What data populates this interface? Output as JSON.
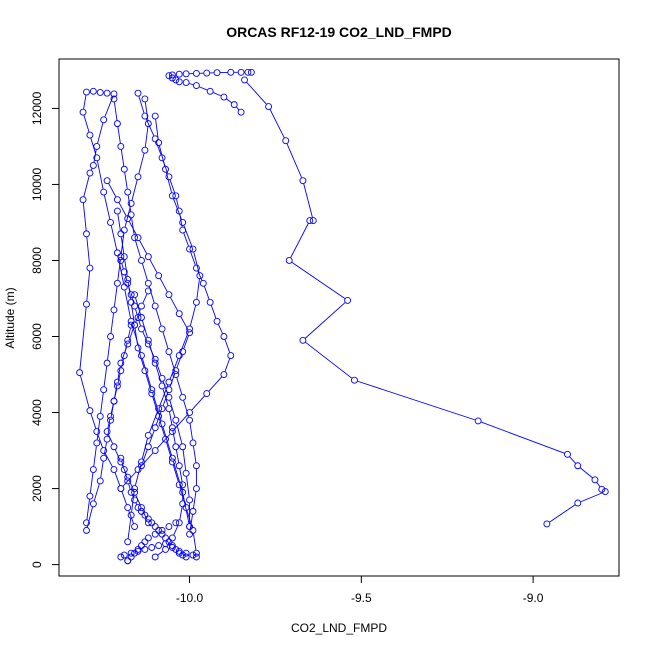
{
  "chart_data": {
    "type": "scatter",
    "title": "ORCAS RF12-19 CO2_LND_FMPD",
    "xlabel": "CO2_LND_FMPD",
    "ylabel": "Altitude (m)",
    "xlim": [
      -10.38,
      -8.75
    ],
    "ylim": [
      -300,
      13300
    ],
    "xticks": [
      -10.0,
      -9.5,
      -9.0
    ],
    "xtick_labels": [
      "-10.0",
      "-9.5",
      "-9.0"
    ],
    "yticks": [
      0,
      2000,
      4000,
      6000,
      8000,
      10000,
      12000
    ],
    "ytick_labels": [
      "0",
      "2000",
      "4000",
      "6000",
      "8000",
      "10000",
      "12000"
    ],
    "grid": false,
    "legend": "none",
    "marker": "open-circle",
    "color": "#0000ff",
    "series": [
      {
        "x": [
          -9.82,
          -9.83,
          -9.85,
          -9.88,
          -9.92,
          -9.95,
          -9.98,
          -10.01,
          -10.03,
          -10.05,
          -10.06,
          -10.05,
          -10.04,
          -10.03,
          -10.01,
          -9.98,
          -9.94,
          -9.9,
          -9.87,
          -9.85
        ],
        "y": [
          12950,
          12950,
          12950,
          12950,
          12940,
          12930,
          12920,
          12910,
          12900,
          12880,
          12860,
          12800,
          12750,
          12700,
          12680,
          12600,
          12450,
          12300,
          12100,
          11900
        ]
      },
      {
        "x": [
          -9.84,
          -9.77,
          -9.72,
          -9.67,
          -9.64,
          -9.65,
          -9.71,
          -9.54,
          -9.67,
          -9.52,
          -9.16,
          -8.9,
          -8.87,
          -8.82,
          -8.8,
          -8.79,
          -8.87,
          -8.96
        ],
        "y": [
          12750,
          12050,
          11150,
          10100,
          9050,
          9050,
          8000,
          6950,
          5900,
          4850,
          3780,
          2900,
          2600,
          2230,
          1980,
          1920,
          1620,
          1070
        ]
      },
      {
        "x": [
          -10.28,
          -10.26,
          -10.24,
          -10.22,
          -10.25,
          -10.27,
          -10.28,
          -10.29,
          -10.31,
          -10.3,
          -10.29,
          -10.3,
          -10.32,
          -10.29,
          -10.27,
          -10.25,
          -10.22,
          -10.2,
          -10.18,
          -10.16
        ],
        "y": [
          12450,
          12420,
          12400,
          12380,
          11700,
          11000,
          10500,
          10300,
          9600,
          8700,
          7800,
          6850,
          5050,
          4050,
          3500,
          3000,
          2500,
          2000,
          1500,
          1000
        ]
      },
      {
        "x": [
          -10.3,
          -10.31,
          -10.29,
          -10.27,
          -10.25,
          -10.23,
          -10.21,
          -10.19,
          -10.17,
          -10.14,
          -10.11,
          -10.08,
          -10.05,
          -10.02,
          -10.0
        ],
        "y": [
          12430,
          11900,
          11300,
          10700,
          9800,
          9000,
          8200,
          7300,
          6400,
          5500,
          4600,
          3700,
          2800,
          1900,
          1000
        ]
      },
      {
        "x": [
          -10.15,
          -10.13,
          -10.1,
          -10.08,
          -10.06,
          -10.04,
          -10.03,
          -10.02,
          -10.0,
          -9.98,
          -9.96,
          -9.94,
          -9.92,
          -9.9,
          -9.88,
          -9.9,
          -9.95,
          -10.0,
          -10.05,
          -10.1,
          -10.15,
          -10.2
        ],
        "y": [
          12400,
          11800,
          11200,
          10700,
          10200,
          9700,
          9300,
          8800,
          8300,
          7800,
          7400,
          6900,
          6400,
          6000,
          5500,
          5000,
          4500,
          4000,
          3500,
          3000,
          2500,
          2000
        ]
      },
      {
        "x": [
          -10.22,
          -10.21,
          -10.2,
          -10.19,
          -10.18,
          -10.17,
          -10.16,
          -10.14,
          -10.12,
          -10.1,
          -10.08,
          -10.06,
          -10.04,
          -10.02,
          -10.0,
          -9.99,
          -9.98,
          -9.98,
          -9.99,
          -10.0
        ],
        "y": [
          12250,
          11600,
          11000,
          10400,
          9800,
          9200,
          8600,
          8000,
          7400,
          6800,
          6200,
          5600,
          5000,
          4400,
          3800,
          3200,
          2600,
          2000,
          1400,
          800
        ]
      },
      {
        "x": [
          -10.13,
          -10.12,
          -10.13,
          -10.15,
          -10.17,
          -10.19,
          -10.2,
          -10.21,
          -10.22,
          -10.23,
          -10.24,
          -10.25,
          -10.26,
          -10.27,
          -10.28,
          -10.29,
          -10.3
        ],
        "y": [
          12250,
          11600,
          10900,
          10200,
          9500,
          8800,
          8100,
          7400,
          6700,
          6000,
          5300,
          4600,
          3900,
          3200,
          2500,
          1800,
          1100
        ]
      },
      {
        "x": [
          -10.1,
          -10.09,
          -10.07,
          -10.05,
          -10.02,
          -9.99,
          -9.97,
          -9.98,
          -10.0,
          -10.03,
          -10.06,
          -10.09,
          -10.12,
          -10.14,
          -10.16,
          -10.17,
          -10.18
        ],
        "y": [
          11800,
          11100,
          10400,
          9700,
          9000,
          8300,
          7600,
          6900,
          6200,
          5500,
          4800,
          4100,
          3400,
          2700,
          2000,
          1300,
          600
        ]
      },
      {
        "x": [
          -10.24,
          -10.21,
          -10.18,
          -10.15,
          -10.12,
          -10.09,
          -10.06,
          -10.03,
          -10.0,
          -10.02,
          -10.04,
          -10.06,
          -10.08,
          -10.1,
          -10.12,
          -10.14
        ],
        "y": [
          10100,
          9600,
          9100,
          8600,
          8100,
          7600,
          7100,
          6600,
          6100,
          5600,
          5100,
          4600,
          4100,
          3600,
          3100,
          2600
        ]
      },
      {
        "x": [
          -10.2,
          -10.19,
          -10.18,
          -10.17,
          -10.16,
          -10.15,
          -10.14,
          -10.12,
          -10.1,
          -10.08,
          -10.06,
          -10.04,
          -10.02,
          -10.01,
          -10.0,
          -10.0
        ],
        "y": [
          8000,
          7700,
          7400,
          7100,
          6800,
          6500,
          6200,
          5800,
          5400,
          4900,
          4400,
          3800,
          3100,
          2400,
          1700,
          1000
        ]
      },
      {
        "x": [
          -10.12,
          -10.14,
          -10.16,
          -10.18,
          -10.2,
          -10.21,
          -10.22,
          -10.23,
          -10.24,
          -10.25,
          -10.26,
          -10.28,
          -10.3
        ],
        "y": [
          7200,
          6800,
          6300,
          5800,
          5300,
          4800,
          4300,
          3800,
          3300,
          2800,
          2200,
          1600,
          900
        ]
      },
      {
        "x": [
          -10.16,
          -10.14,
          -10.12,
          -10.1,
          -10.08,
          -10.06,
          -10.05,
          -10.04,
          -10.03,
          -10.02,
          -10.02,
          -10.03,
          -10.05,
          -10.07,
          -10.1
        ],
        "y": [
          7100,
          6500,
          5900,
          5300,
          4700,
          4100,
          3600,
          3100,
          2600,
          2100,
          1600,
          1100,
          700,
          400,
          200
        ]
      },
      {
        "x": [
          -10.21,
          -10.2,
          -10.19,
          -10.18,
          -10.17,
          -10.16,
          -10.15,
          -10.13,
          -10.11,
          -10.09,
          -10.07,
          -10.05,
          -10.03,
          -10.01,
          -9.99,
          -9.98
        ],
        "y": [
          9300,
          8700,
          8100,
          7500,
          6900,
          6300,
          5700,
          5100,
          4500,
          3900,
          3300,
          2700,
          2100,
          1500,
          900,
          300
        ]
      },
      {
        "x": [
          -10.17,
          -10.18,
          -10.19,
          -10.2,
          -10.21,
          -10.22,
          -10.23,
          -10.24,
          -10.22,
          -10.2,
          -10.18,
          -10.16,
          -10.14,
          -10.12
        ],
        "y": [
          6300,
          5900,
          5500,
          5100,
          4700,
          4300,
          3900,
          3500,
          3100,
          2700,
          2300,
          1900,
          1500,
          1100
        ]
      },
      {
        "x": [
          -10.2,
          -10.19,
          -10.18,
          -10.17,
          -10.16,
          -10.15,
          -10.14,
          -10.13,
          -10.12,
          -10.11,
          -10.1,
          -10.09,
          -10.08,
          -10.07,
          -10.06,
          -10.05,
          -10.04,
          -10.03,
          -10.02,
          -10.01
        ],
        "y": [
          2800,
          2500,
          2200,
          1900,
          1700,
          1500,
          1400,
          1300,
          1200,
          1100,
          1000,
          900,
          800,
          700,
          600,
          500,
          400,
          300,
          250,
          200
        ]
      },
      {
        "x": [
          -10.2,
          -10.19,
          -10.17,
          -10.15,
          -10.13,
          -10.11,
          -10.09,
          -10.07,
          -10.05,
          -10.03,
          -10.01,
          -9.99,
          -9.98
        ],
        "y": [
          200,
          250,
          300,
          350,
          400,
          450,
          500,
          550,
          450,
          350,
          300,
          250,
          200
        ]
      },
      {
        "x": [
          -10.18,
          -10.18,
          -10.17,
          -10.16,
          -10.15,
          -10.14,
          -10.13,
          -10.12,
          -10.1,
          -10.08,
          -10.06,
          -10.04
        ],
        "y": [
          100,
          100,
          200,
          300,
          400,
          500,
          600,
          700,
          800,
          900,
          1000,
          1100
        ]
      }
    ]
  }
}
